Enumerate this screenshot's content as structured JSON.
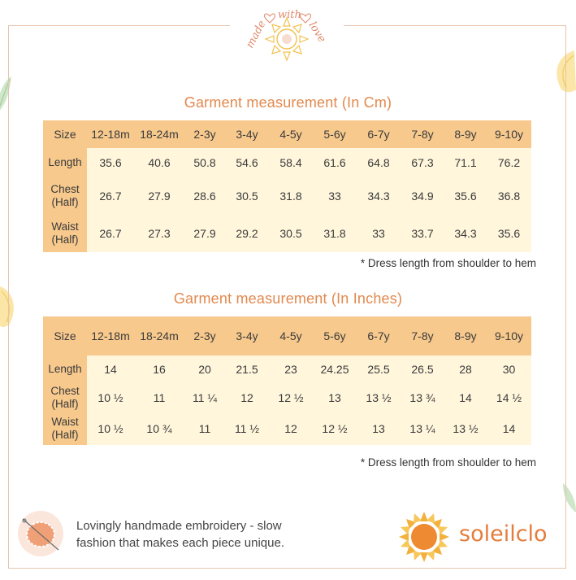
{
  "badge": {
    "text_left": "made",
    "text_middle": "with",
    "text_right": "love"
  },
  "cm": {
    "title": "Garment measurement (In Cm)",
    "header": [
      "Size",
      "12-18m",
      "18-24m",
      "2-3y",
      "3-4y",
      "4-5y",
      "5-6y",
      "6-7y",
      "7-8y",
      "8-9y",
      "9-10y"
    ],
    "rows": [
      {
        "label": [
          "Length"
        ],
        "values": [
          "35.6",
          "40.6",
          "50.8",
          "54.6",
          "58.4",
          "61.6",
          "64.8",
          "67.3",
          "71.1",
          "76.2"
        ]
      },
      {
        "label": [
          "Chest",
          "(Half)"
        ],
        "values": [
          "26.7",
          "27.9",
          "28.6",
          "30.5",
          "31.8",
          "33",
          "34.3",
          "34.9",
          "35.6",
          "36.8"
        ]
      },
      {
        "label": [
          "Waist",
          "(Half)"
        ],
        "values": [
          "26.7",
          "27.3",
          "27.9",
          "29.2",
          "30.5",
          "31.8",
          "33",
          "33.7",
          "34.3",
          "35.6"
        ]
      }
    ],
    "note": "* Dress length from shoulder to hem"
  },
  "inches": {
    "title": "Garment measurement (In Inches)",
    "header": [
      "Size",
      "12-18m",
      "18-24m",
      "2-3y",
      "3-4y",
      "4-5y",
      "5-6y",
      "6-7y",
      "7-8y",
      "8-9y",
      "9-10y"
    ],
    "rows": [
      {
        "label": [
          "Length"
        ],
        "values": [
          "14",
          "16",
          "20",
          "21.5",
          "23",
          "24.25",
          "25.5",
          "26.5",
          "28",
          "30"
        ]
      },
      {
        "label": [
          "Chest",
          "(Half)"
        ],
        "values": [
          "10 ½",
          "11",
          "11 ¼",
          "12",
          "12 ½",
          "13",
          "13 ½",
          "13 ¾",
          "14",
          "14 ½"
        ]
      },
      {
        "label": [
          "Waist",
          "(Half)"
        ],
        "values": [
          "10 ½",
          "10 ¾",
          "11",
          "11 ½",
          "12",
          "12 ½",
          "13",
          "13 ¼",
          "13 ½",
          "14"
        ]
      }
    ],
    "note": "* Dress length from shoulder to hem"
  },
  "footer": {
    "icon": "embroidery-hoop-icon",
    "line1": "Lovingly handmade embroidery - slow",
    "line2": "fashion that makes each piece unique."
  },
  "logo": {
    "icon": "sun-icon",
    "text": "soleilclo"
  },
  "colors": {
    "header_bg": "#f7c98d",
    "body_bg": "#fff6dc",
    "accent": "#e2894e",
    "border": "#e6c4ae"
  }
}
